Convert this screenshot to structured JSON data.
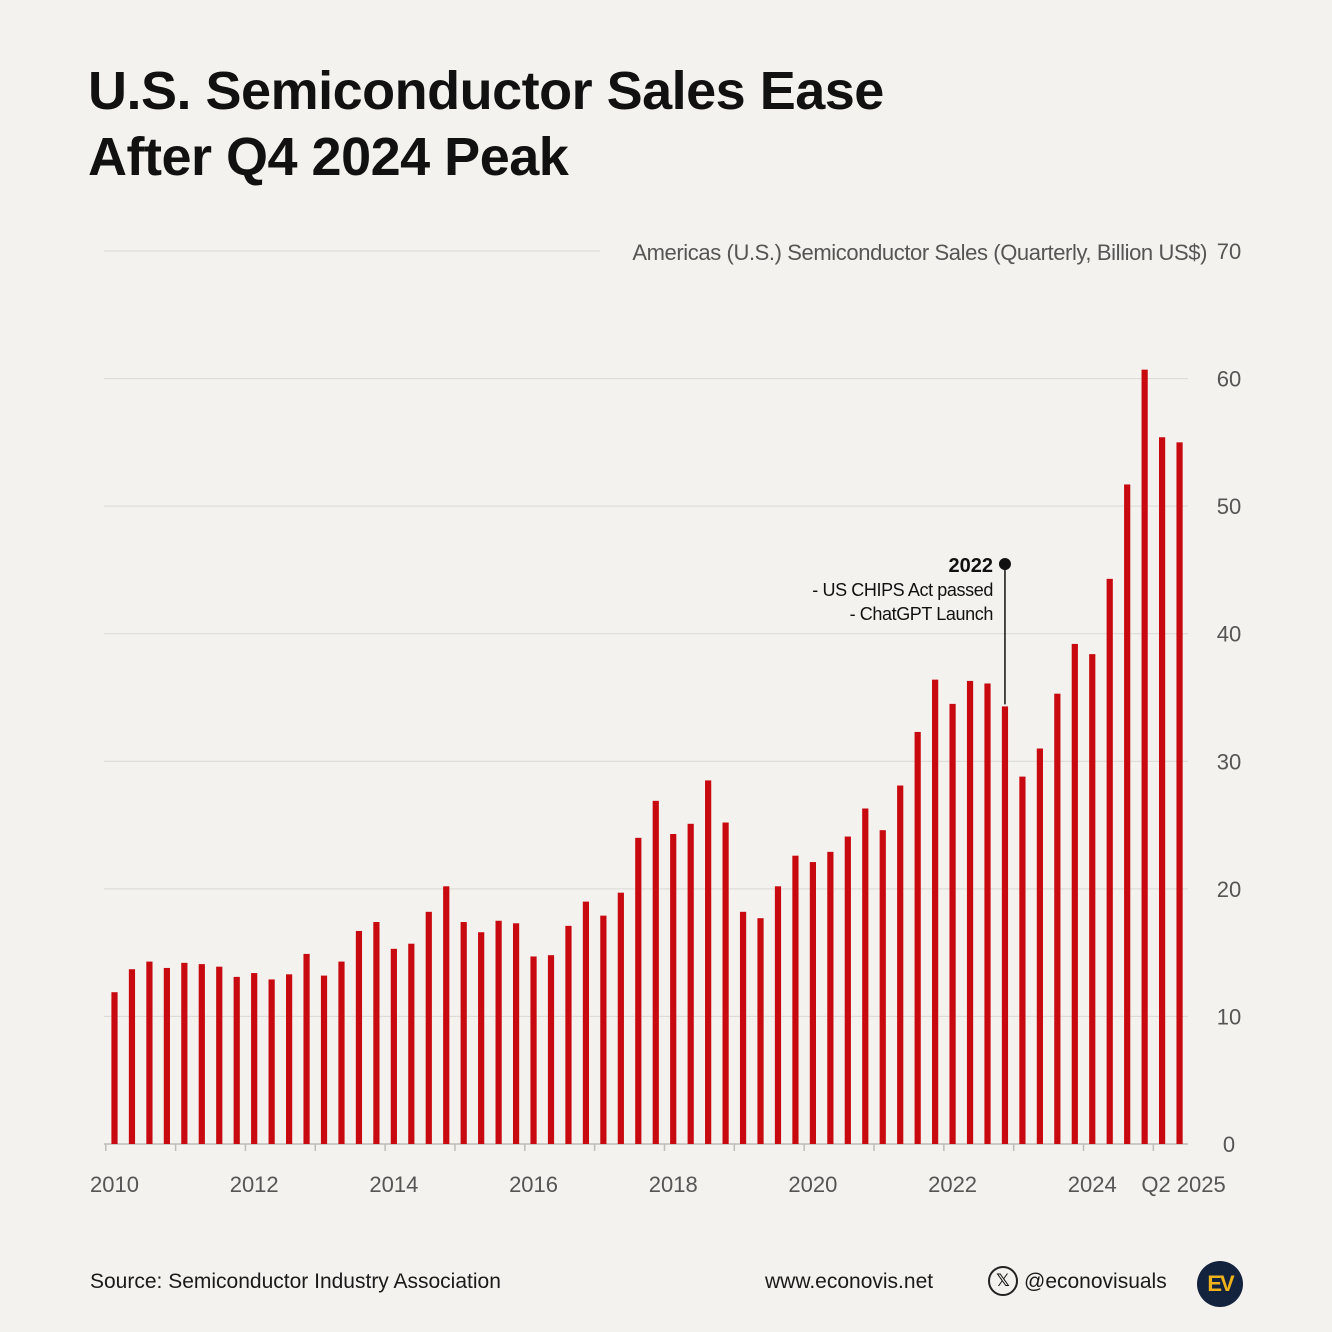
{
  "title": {
    "line1": "U.S. Semiconductor Sales Ease",
    "line2": "After Q4 2024 Peak"
  },
  "chart_data": {
    "type": "bar",
    "title": "U.S. Semiconductor Sales Ease After Q4 2024 Peak",
    "ylabel": "Americas (U.S.) Semiconductor Sales (Quarterly, Billion US$)",
    "ylim": [
      0,
      70
    ],
    "yticks": [
      "0",
      "10",
      "20",
      "30",
      "40",
      "50",
      "60",
      "70"
    ],
    "xticks": [
      "2010",
      "2012",
      "2014",
      "2016",
      "2018",
      "2020",
      "2022",
      "2024",
      "Q2 2025"
    ],
    "bar_color": "#c8090f",
    "categories": [
      "2010 Q1",
      "2010 Q2",
      "2010 Q3",
      "2010 Q4",
      "2011 Q1",
      "2011 Q2",
      "2011 Q3",
      "2011 Q4",
      "2012 Q1",
      "2012 Q2",
      "2012 Q3",
      "2012 Q4",
      "2013 Q1",
      "2013 Q2",
      "2013 Q3",
      "2013 Q4",
      "2014 Q1",
      "2014 Q2",
      "2014 Q3",
      "2014 Q4",
      "2015 Q1",
      "2015 Q2",
      "2015 Q3",
      "2015 Q4",
      "2016 Q1",
      "2016 Q2",
      "2016 Q3",
      "2016 Q4",
      "2017 Q1",
      "2017 Q2",
      "2017 Q3",
      "2017 Q4",
      "2018 Q1",
      "2018 Q2",
      "2018 Q3",
      "2018 Q4",
      "2019 Q1",
      "2019 Q2",
      "2019 Q3",
      "2019 Q4",
      "2020 Q1",
      "2020 Q2",
      "2020 Q3",
      "2020 Q4",
      "2021 Q1",
      "2021 Q2",
      "2021 Q3",
      "2021 Q4",
      "2022 Q1",
      "2022 Q2",
      "2022 Q3",
      "2022 Q4",
      "2023 Q1",
      "2023 Q2",
      "2023 Q3",
      "2023 Q4",
      "2024 Q1",
      "2024 Q2",
      "2024 Q3",
      "2024 Q4",
      "2025 Q1",
      "2025 Q2"
    ],
    "values": [
      11.9,
      13.7,
      14.3,
      13.8,
      14.2,
      14.1,
      13.9,
      13.1,
      13.4,
      12.9,
      13.3,
      14.9,
      13.2,
      14.3,
      16.7,
      17.4,
      15.3,
      15.7,
      18.2,
      20.2,
      17.4,
      16.6,
      17.5,
      17.3,
      14.7,
      14.8,
      17.1,
      19.0,
      17.9,
      19.7,
      24.0,
      26.9,
      24.3,
      25.1,
      28.5,
      25.2,
      18.2,
      17.7,
      20.2,
      22.6,
      22.1,
      22.9,
      24.1,
      26.3,
      24.6,
      28.1,
      32.3,
      36.4,
      34.5,
      36.3,
      36.1,
      34.3,
      28.8,
      31.0,
      35.3,
      39.2,
      38.4,
      44.3,
      51.7,
      60.7,
      55.4,
      55.0
    ],
    "annotation": {
      "category": "2022 Q4",
      "year": "2022",
      "line1": "- US CHIPS Act passed",
      "line2": "- ChatGPT Launch"
    }
  },
  "footer": {
    "source": "Source: Semiconductor Industry Association",
    "website": "www.econovis.net",
    "x_icon": "𝕏",
    "handle": "@econovisuals",
    "logo": "EV"
  }
}
